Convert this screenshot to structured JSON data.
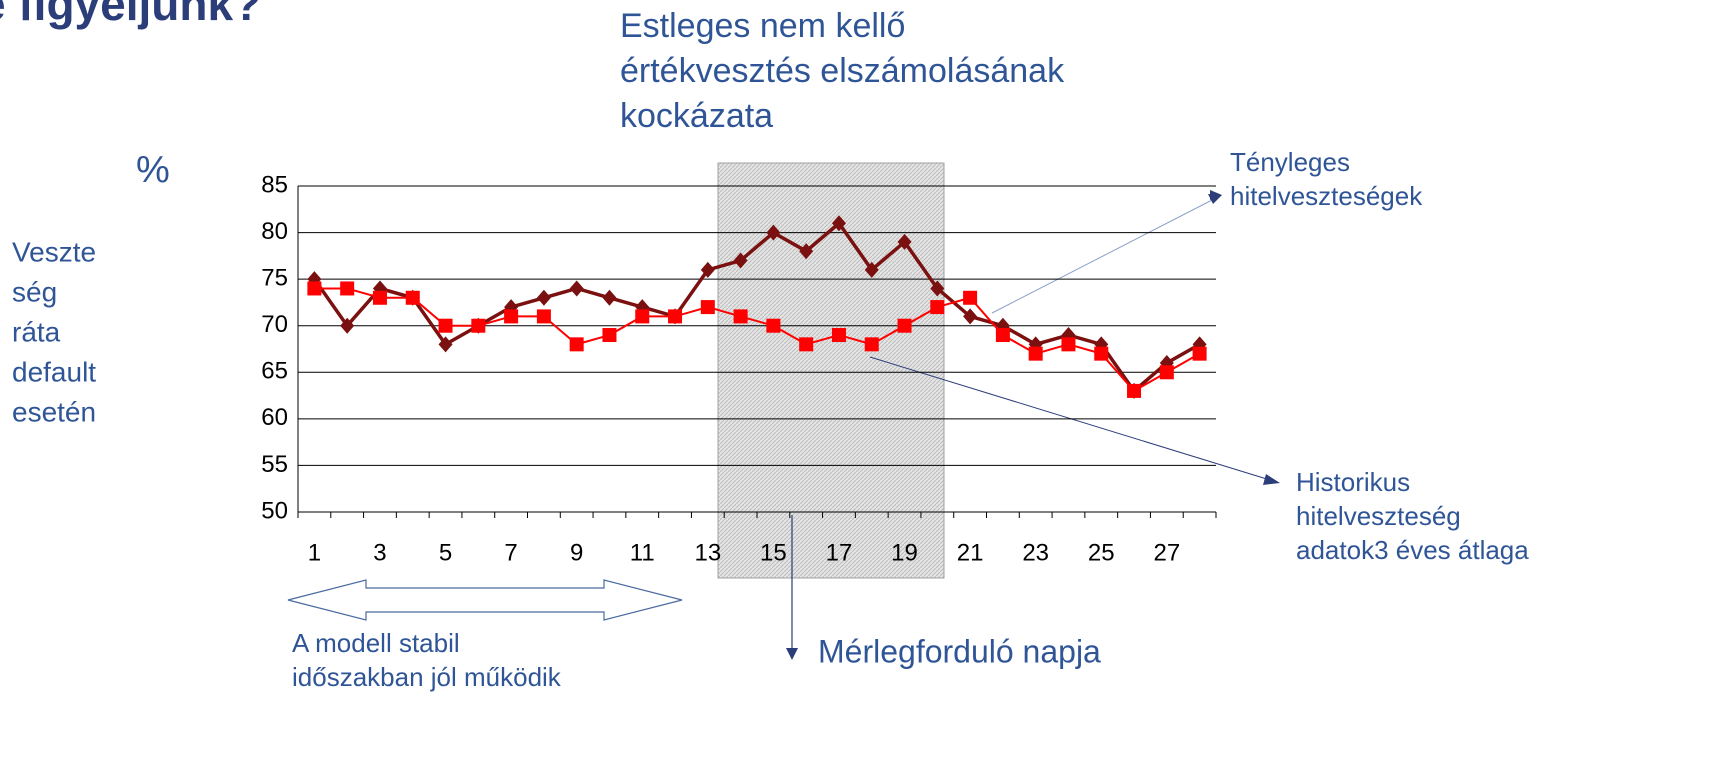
{
  "chart_data": {
    "type": "line",
    "title": "e figyeljünk?",
    "unit": "%",
    "ylabel_lines": [
      "Veszte",
      "ség",
      "ráta",
      "default",
      "esetén"
    ],
    "categories": [
      1,
      null,
      3,
      null,
      5,
      null,
      7,
      null,
      9,
      null,
      11,
      null,
      13,
      null,
      15,
      null,
      17,
      null,
      19,
      null,
      21,
      null,
      23,
      null,
      25,
      null,
      27,
      null
    ],
    "series": [
      {
        "color": "#7b1010",
        "marker": "diamond",
        "values": [
          75,
          70,
          74,
          73,
          68,
          70,
          72,
          73,
          74,
          73,
          72,
          71,
          76,
          77,
          80,
          78,
          81,
          76,
          79,
          74,
          71,
          70,
          68,
          69,
          68,
          63,
          66,
          68
        ]
      },
      {
        "color": "#ff0000",
        "marker": "square",
        "values": [
          74,
          74,
          73,
          73,
          70,
          70,
          71,
          71,
          68,
          69,
          71,
          71,
          72,
          71,
          70,
          68,
          69,
          68,
          70,
          72,
          73,
          69,
          67,
          68,
          67,
          63,
          65,
          67
        ]
      }
    ],
    "ylim": [
      50,
      85
    ],
    "yticks": [
      50,
      55,
      60,
      65,
      70,
      75,
      80,
      85
    ],
    "grid": true,
    "annotations": {
      "risk": [
        "Estleges nem kellő",
        "értékvesztés elszámolásának",
        "kockázata"
      ],
      "actual": [
        "Tényleges",
        "hitelveszteségek"
      ],
      "historic": [
        "Historikus",
        "hitelveszteség",
        "adatok3 éves átlaga"
      ],
      "stable": [
        "A modell stabil",
        "időszakban jól működik"
      ],
      "balance": [
        "Mérlegforduló napja"
      ]
    }
  }
}
